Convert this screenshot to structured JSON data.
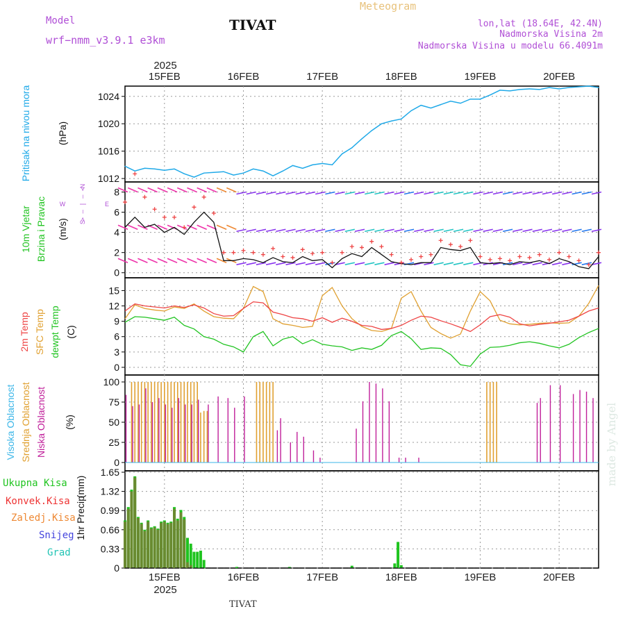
{
  "header": {
    "model_label": "Model",
    "model_name": "wrf−nmm_v3.9.1  e3km",
    "title": "TIVAT",
    "meteogram": "Meteogram",
    "lonlat": "lon,lat (18.64E, 42.4N)",
    "elev": "Nadmorska Visina 2m",
    "elev_model": "Nadmorska Visina u modelu 66.4091m",
    "footer": "TIVAT",
    "watermark": "made by Angel"
  },
  "colors": {
    "model": "#b04fd6",
    "meteogram": "#e8c27c",
    "info": "#b04fd6",
    "pressure": "#1fa9e8",
    "temp2m": "#ee4444",
    "sfc": "#e0a030",
    "dewpt": "#22c422",
    "high_cloud": "#3bb6e8",
    "mid_cloud": "#e0a030",
    "low_cloud": "#c01f9a",
    "total_precip": "#1fc41f",
    "conv_precip": "#ee3333",
    "frozen": "#ee8833",
    "snow": "#4444dd",
    "hail": "#22c4b4",
    "wind_blue": "#2277ee",
    "wind_violet": "#8833ee",
    "wind_cyan": "#22c4c4",
    "wind_green": "#33dd33",
    "wind_yellow": "#dddd33",
    "wind_orange": "#ee8833",
    "wind_red": "#ee3355",
    "wind_magenta": "#ee33aa"
  },
  "chart_data": {
    "type": "line",
    "time_axis": {
      "year": "2025",
      "labels": [
        "15FEB",
        "16FEB",
        "17FEB",
        "18FEB",
        "19FEB",
        "20FEB"
      ],
      "start_hour": -12,
      "end_hour": 132
    },
    "pressure": {
      "ylabel_name": "Pritisak na nivou mora",
      "unit": "(hPa)",
      "ylim": [
        1011.5,
        1025.5
      ],
      "ticks": [
        "1024",
        "1020",
        "1016",
        "1012"
      ],
      "tick_values": [
        1024,
        1020,
        1016,
        1012
      ],
      "x": [
        -12,
        -9,
        -6,
        -3,
        0,
        3,
        6,
        9,
        12,
        15,
        18,
        21,
        24,
        27,
        30,
        33,
        36,
        39,
        42,
        45,
        48,
        51,
        54,
        57,
        60,
        63,
        66,
        69,
        72,
        75,
        78,
        81,
        84,
        87,
        90,
        93,
        96,
        99,
        102,
        105,
        108,
        111,
        114,
        117,
        120,
        123,
        126,
        129,
        132
      ],
      "values": [
        1013.8,
        1013.1,
        1013.5,
        1013.4,
        1013.2,
        1013.4,
        1012.7,
        1012.2,
        1012.8,
        1012.9,
        1013.0,
        1012.5,
        1012.8,
        1013.4,
        1013.1,
        1012.4,
        1013.1,
        1013.9,
        1013.5,
        1014.0,
        1014.2,
        1014.0,
        1015.6,
        1016.5,
        1017.8,
        1019.0,
        1020.0,
        1020.4,
        1020.7,
        1021.9,
        1022.7,
        1022.3,
        1022.8,
        1023.3,
        1023.0,
        1023.6,
        1023.6,
        1024.2,
        1024.9,
        1024.8,
        1025.0,
        1025.1,
        1025.0,
        1025.3,
        1025.1,
        1025.3,
        1025.4,
        1025.5,
        1025.3
      ]
    },
    "wind": {
      "ylabel_name": "10m Vjetar",
      "ylabel_name2": "Brzina i Pravac",
      "unit": "(m/s)",
      "compass_n": "N",
      "compass_arrow": "> — | — <",
      "compass_w": "W",
      "compass_e": "E",
      "compass_s": "S",
      "ylim": [
        -0.5,
        9.0
      ],
      "ticks": [
        "8",
        "6",
        "4",
        "2",
        "0"
      ],
      "tick_values": [
        8,
        6,
        4,
        2,
        0
      ],
      "x": [
        -12,
        -9,
        -6,
        -3,
        0,
        3,
        6,
        9,
        12,
        15,
        18,
        21,
        24,
        27,
        30,
        33,
        36,
        39,
        42,
        45,
        48,
        51,
        54,
        57,
        60,
        63,
        66,
        69,
        72,
        75,
        78,
        81,
        84,
        87,
        90,
        93,
        96,
        99,
        102,
        105,
        108,
        111,
        114,
        117,
        120,
        123,
        126,
        129,
        132
      ],
      "speed": [
        4.5,
        5.5,
        4.5,
        4.8,
        4.0,
        4.5,
        3.8,
        5.0,
        6.0,
        5.0,
        1.2,
        1.2,
        1.4,
        1.3,
        1.0,
        1.5,
        1.1,
        1.0,
        1.6,
        1.2,
        1.3,
        0.5,
        1.4,
        1.9,
        1.6,
        2.5,
        1.8,
        1.1,
        0.9,
        0.8,
        1.0,
        1.0,
        2.5,
        2.3,
        2.2,
        2.5,
        1.0,
        0.9,
        1.0,
        0.8,
        1.1,
        1.0,
        1.2,
        0.9,
        1.4,
        1.1,
        0.6,
        0.4,
        1.6
      ],
      "gust": [
        7.0,
        9.8,
        7.5,
        6.3,
        5.5,
        5.5,
        4.5,
        6.5,
        7.5,
        5.9,
        2.0,
        2.0,
        2.2,
        2.0,
        1.8,
        2.4,
        1.6,
        1.5,
        2.3,
        1.9,
        2.0,
        1.0,
        2.0,
        2.6,
        2.5,
        3.1,
        2.6,
        1.8,
        1.0,
        1.3,
        1.6,
        1.8,
        3.2,
        2.8,
        2.6,
        3.2,
        1.6,
        1.3,
        1.4,
        1.2,
        1.6,
        1.5,
        1.8,
        1.3,
        2.0,
        1.6,
        1.2,
        0.8,
        2.0
      ]
    },
    "temperature": {
      "ylabel_t2": "2m Temp",
      "ylabel_sfc": "SFC Temp",
      "ylabel_dew": "dewpt Temp",
      "unit": "(C)",
      "ylim": [
        -1.5,
        17.5
      ],
      "ticks": [
        "15",
        "12",
        "9",
        "6",
        "3",
        "0"
      ],
      "tick_values": [
        15,
        12,
        9,
        6,
        3,
        0
      ],
      "x": [
        -12,
        -9,
        -6,
        -3,
        0,
        3,
        6,
        9,
        12,
        15,
        18,
        21,
        24,
        27,
        30,
        33,
        36,
        39,
        42,
        45,
        48,
        51,
        54,
        57,
        60,
        63,
        66,
        69,
        72,
        75,
        78,
        81,
        84,
        87,
        90,
        93,
        96,
        99,
        102,
        105,
        108,
        111,
        114,
        117,
        120,
        123,
        126,
        129,
        132
      ],
      "temp2m": [
        11.0,
        12.4,
        12.0,
        11.8,
        11.6,
        12.0,
        11.7,
        12.2,
        11.6,
        10.5,
        10.0,
        10.1,
        11.5,
        12.8,
        12.6,
        10.8,
        10.3,
        9.7,
        9.5,
        9.0,
        9.7,
        8.8,
        9.6,
        9.0,
        8.2,
        8.0,
        7.4,
        7.6,
        8.2,
        9.2,
        10.0,
        9.8,
        9.1,
        8.5,
        7.8,
        7.0,
        8.3,
        9.9,
        10.3,
        9.8,
        8.5,
        8.1,
        8.4,
        8.6,
        8.9,
        9.2,
        10.0,
        11.0,
        11.6
      ],
      "sfc": [
        9.5,
        12.2,
        11.5,
        11.2,
        11.0,
        11.8,
        11.5,
        12.4,
        11.0,
        9.9,
        9.6,
        9.5,
        11.5,
        15.8,
        14.8,
        9.5,
        8.5,
        8.2,
        7.8,
        8.0,
        14.0,
        15.6,
        12.0,
        9.5,
        8.0,
        7.2,
        7.0,
        7.6,
        13.5,
        14.8,
        11.0,
        7.8,
        6.6,
        5.7,
        6.5,
        11.0,
        14.8,
        13.0,
        9.2,
        8.5,
        8.3,
        8.4,
        8.6,
        8.7,
        8.6,
        8.7,
        10.0,
        12.5,
        16.0
      ],
      "dewpt": [
        8.8,
        9.9,
        9.8,
        9.5,
        9.2,
        9.8,
        8.2,
        7.5,
        6.0,
        5.5,
        4.5,
        4.0,
        3.0,
        6.0,
        7.0,
        4.2,
        5.5,
        6.0,
        4.6,
        5.4,
        4.5,
        4.2,
        4.0,
        3.3,
        3.8,
        3.5,
        4.3,
        6.2,
        7.0,
        5.6,
        3.5,
        3.8,
        3.7,
        2.5,
        0.5,
        0.2,
        2.6,
        3.9,
        4.0,
        4.3,
        4.8,
        5.0,
        4.7,
        4.2,
        3.8,
        4.5,
        5.8,
        6.8,
        7.6
      ]
    },
    "cloud": {
      "ylabel_high": "Visoka Oblacnost",
      "ylabel_mid": "Srednja Oblacnost",
      "ylabel_low": "Niska Oblacnost",
      "unit": "(%)",
      "ylim": [
        0,
        100
      ],
      "ticks": [
        "100",
        "75",
        "50",
        "25",
        "0"
      ],
      "tick_values": [
        100,
        75,
        50,
        25,
        0
      ],
      "mid_x": [
        -11,
        -10,
        -9,
        -8,
        -7,
        -6,
        -5,
        -4,
        -3,
        -2,
        -1,
        0,
        1,
        2,
        3,
        4,
        5,
        6,
        7,
        8,
        9,
        10,
        11,
        12,
        13,
        14,
        15,
        28,
        29,
        30,
        31,
        32,
        33,
        34,
        98,
        99,
        100,
        101
      ],
      "mid_values": [
        0,
        100,
        100,
        100,
        100,
        100,
        100,
        100,
        100,
        100,
        100,
        100,
        100,
        100,
        100,
        100,
        100,
        100,
        100,
        100,
        100,
        100,
        62,
        64,
        64,
        0,
        0,
        100,
        100,
        100,
        100,
        100,
        100,
        0,
        100,
        100,
        100,
        100
      ],
      "low_x": [
        -12,
        -10,
        -8,
        -6,
        -4,
        -2,
        0,
        2,
        4,
        6,
        8,
        10,
        13,
        16,
        19,
        21,
        24,
        34,
        35,
        38,
        40,
        42,
        45,
        47,
        58,
        60,
        62,
        64,
        66,
        68,
        71,
        73,
        77,
        113,
        114,
        117,
        120,
        124,
        126,
        128,
        130
      ],
      "low_values": [
        84,
        70,
        72,
        92,
        75,
        80,
        72,
        68,
        80,
        72,
        72,
        78,
        72,
        82,
        80,
        68,
        82,
        40,
        55,
        25,
        38,
        32,
        15,
        6,
        42,
        76,
        100,
        98,
        92,
        76,
        6,
        6,
        6,
        74,
        80,
        96,
        96,
        85,
        90,
        88,
        80
      ]
    },
    "precip": {
      "ylabel_total": "Ukupna Kisa",
      "ylabel_conv": "Konvek.Kisa",
      "ylabel_frozen": "Zaledj.Kisa",
      "ylabel_snow": "Snijeg",
      "ylabel_hail": "Grad",
      "ylabel_main": "1hr Precip",
      "unit": "(mm)",
      "ylim": [
        0,
        1.65
      ],
      "ticks": [
        "1.65",
        "1.32",
        "0.99",
        "0.66",
        "0.33",
        "0"
      ],
      "tick_values": [
        1.65,
        1.32,
        0.99,
        0.66,
        0.33,
        0
      ],
      "x": [
        -12,
        -11,
        -10,
        -9,
        -8,
        -7,
        -6,
        -5,
        -4,
        -3,
        -2,
        -1,
        0,
        1,
        2,
        3,
        4,
        5,
        6,
        7,
        8,
        9,
        10,
        11,
        12,
        13,
        14,
        15,
        16,
        17,
        18,
        19,
        20,
        21,
        22,
        38,
        57,
        70,
        71,
        72
      ],
      "total": [
        0.82,
        1.05,
        1.35,
        1.58,
        0.88,
        0.78,
        0.66,
        0.82,
        0.7,
        0.72,
        0.68,
        0.8,
        0.82,
        0.78,
        0.8,
        1.05,
        0.85,
        1.0,
        0.88,
        0.52,
        0.42,
        0.28,
        0.28,
        0.3,
        0.14,
        0,
        0,
        0,
        0,
        0,
        0,
        0,
        0,
        0,
        0.02,
        0.02,
        0.04,
        0.08,
        0.45,
        0.05
      ],
      "conv": [
        0.8,
        1.02,
        1.32,
        1.56,
        0.86,
        0.76,
        0.64,
        0.8,
        0.68,
        0.7,
        0.66,
        0.78,
        0.8,
        0.76,
        0.78,
        1.02,
        0.82,
        0.96,
        0.84,
        0.1,
        0.05,
        0,
        0,
        0,
        0,
        0,
        0,
        0,
        0,
        0,
        0,
        0,
        0,
        0,
        0,
        0,
        0,
        0,
        0,
        0
      ]
    }
  }
}
